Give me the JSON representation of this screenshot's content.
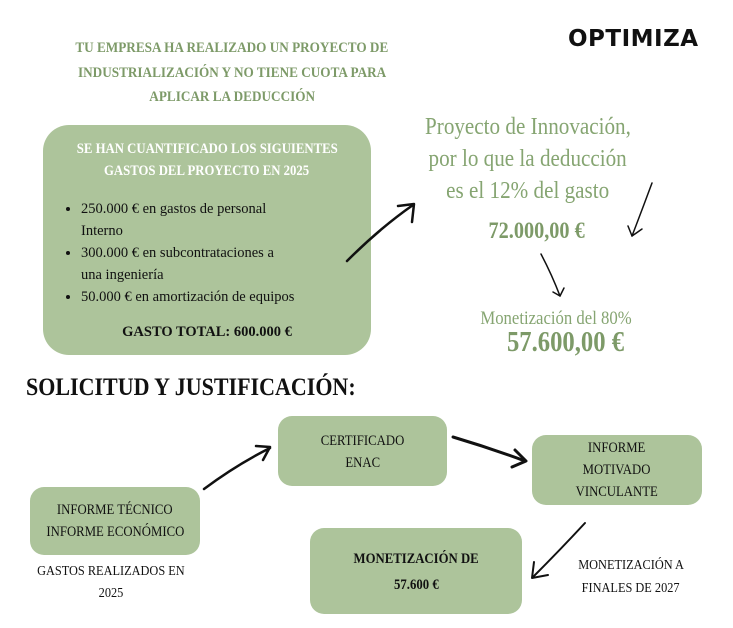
{
  "logo": {
    "text": "OPTIMIZA"
  },
  "headline": {
    "lines": [
      "TU EMPRESA HA REALIZADO UN PROYECTO DE",
      "INDUSTRIALIZACIÓN Y NO TIENE CUOTA PARA",
      "APLICAR LA DEDUCCIÓN"
    ]
  },
  "expenses_box": {
    "title_lines": [
      "SE HAN CUANTIFICADO LOS SIGUIENTES",
      "GASTOS DEL PROYECTO EN 2025"
    ],
    "items": [
      [
        "250.000 € en gastos de personal",
        "Interno"
      ],
      [
        "300.000 € en subcontrataciones a",
        "una ingeniería"
      ],
      [
        "50.000 € en amortización de equipos"
      ]
    ],
    "total": "GASTO TOTAL: 600.000 €"
  },
  "deduction": {
    "lines": [
      "Proyecto de Innovación,",
      "por lo que la deducción",
      "es el 12% del gasto"
    ],
    "amount": "72.000,00 €",
    "monetization_label": "Monetización del 80%",
    "monetization_amount": "57.600,00 €"
  },
  "section_title": "SOLICITUD Y JUSTIFICACIÓN:",
  "flow": {
    "informe_tecnico": [
      "INFORME TÉCNICO",
      "INFORME ECONÓMICO"
    ],
    "gastos_label": [
      "GASTOS REALIZADOS EN",
      "2025"
    ],
    "certificado": [
      "CERTIFICADO",
      "ENAC"
    ],
    "informe_motivado": [
      "INFORME",
      "MOTIVADO",
      "VINCULANTE"
    ],
    "monetizacion": [
      "MONETIZACIÓN DE",
      "57.600 €"
    ],
    "monetizacion_label": [
      "MONETIZACIÓN A",
      "FINALES DE 2027"
    ]
  },
  "colors": {
    "box_green": "#adc49b",
    "text_green": "#7d9a68"
  }
}
